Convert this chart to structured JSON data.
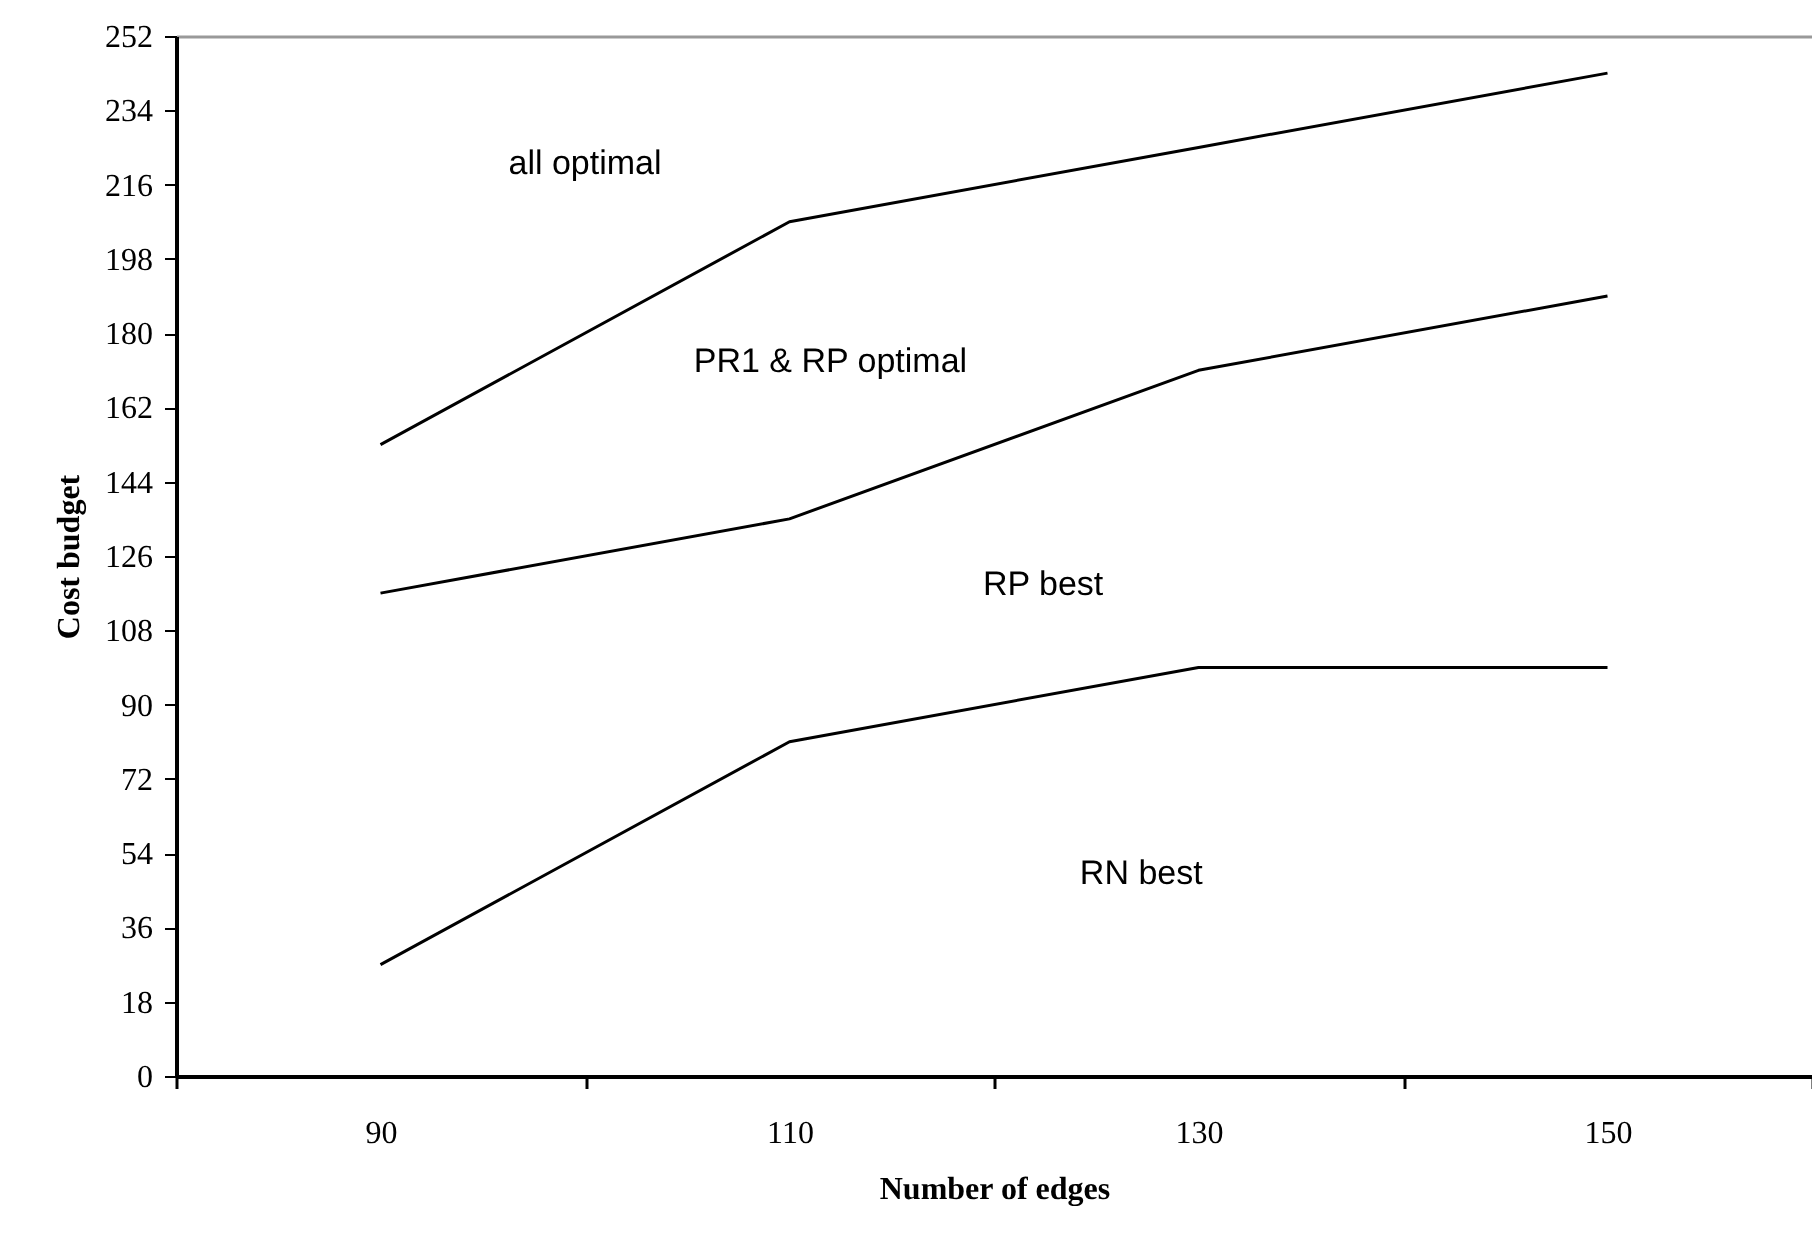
{
  "chart_data": {
    "type": "line",
    "xlabel": "Number of edges",
    "ylabel": "Cost budget",
    "categories": [
      "90",
      "110",
      "130",
      "150"
    ],
    "series": [
      {
        "color": "#000000",
        "values": [
          153,
          207,
          225,
          243
        ]
      },
      {
        "color": "#000000",
        "values": [
          117,
          135,
          171,
          189
        ]
      },
      {
        "color": "#000000",
        "values": [
          27,
          81,
          99,
          99
        ]
      }
    ],
    "ylim": [
      0,
      252
    ],
    "yticks": [
      0,
      18,
      36,
      54,
      72,
      90,
      108,
      126,
      144,
      162,
      180,
      198,
      216,
      234,
      252
    ],
    "grid": false,
    "marker": "none",
    "line_style": "solid",
    "annotations": [
      "all optimal",
      "PR1 & RP optimal",
      "RP best",
      "RN best"
    ]
  }
}
